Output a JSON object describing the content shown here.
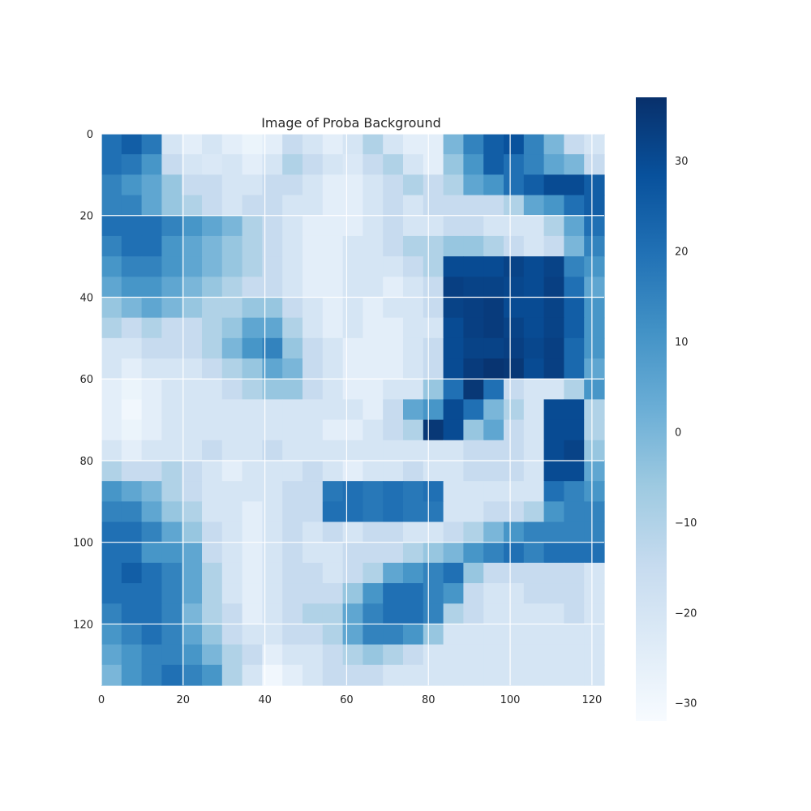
{
  "chart_data": {
    "type": "heatmap",
    "title": "Image of Proba Background",
    "xlabel": "",
    "ylabel": "",
    "grid": true,
    "colormap": "Blues",
    "x_range": [
      0,
      123
    ],
    "y_range": [
      0,
      135
    ],
    "x_ticks": [
      0,
      20,
      40,
      60,
      80,
      100,
      120
    ],
    "y_ticks": [
      0,
      20,
      40,
      60,
      80,
      100,
      120
    ],
    "value_range": [
      -32,
      37
    ],
    "colorbar_ticks": [
      30,
      20,
      10,
      0,
      -10,
      -20,
      -30
    ],
    "colorbar_tick_labels": [
      "30",
      "20",
      "10",
      "0",
      "−10",
      "−20",
      "−30"
    ],
    "grid_shape": {
      "rows": 27,
      "cols": 25,
      "cell_size": 5
    },
    "values": [
      [
        20,
        25,
        18,
        -20,
        -25,
        -20,
        -25,
        -28,
        -25,
        -15,
        -20,
        -25,
        -20,
        -10,
        -20,
        -25,
        -25,
        0,
        15,
        25,
        28,
        15,
        0,
        -15,
        -20
      ],
      [
        20,
        18,
        10,
        -15,
        -20,
        -22,
        -20,
        -25,
        -20,
        -10,
        -15,
        -20,
        -22,
        -15,
        -10,
        -20,
        -25,
        -5,
        10,
        25,
        20,
        15,
        5,
        0,
        -15
      ],
      [
        15,
        10,
        5,
        -5,
        -15,
        -15,
        -20,
        -20,
        -15,
        -15,
        -20,
        -25,
        -25,
        -20,
        -15,
        -10,
        -15,
        -10,
        5,
        10,
        20,
        25,
        30,
        30,
        25
      ],
      [
        15,
        15,
        5,
        -5,
        -10,
        -15,
        -20,
        -15,
        -15,
        -20,
        -20,
        -25,
        -25,
        -20,
        -15,
        -20,
        -15,
        -15,
        -15,
        -15,
        -10,
        5,
        10,
        20,
        25
      ],
      [
        20,
        20,
        20,
        15,
        10,
        5,
        0,
        -10,
        -15,
        -20,
        -25,
        -25,
        -25,
        -20,
        -15,
        -20,
        -20,
        -15,
        -15,
        -20,
        -20,
        -20,
        -10,
        5,
        20
      ],
      [
        15,
        20,
        20,
        10,
        5,
        0,
        -5,
        -10,
        -15,
        -20,
        -25,
        -25,
        -20,
        -20,
        -15,
        -10,
        -10,
        -5,
        -5,
        -10,
        -15,
        -20,
        -15,
        0,
        15
      ],
      [
        10,
        15,
        15,
        10,
        5,
        0,
        -5,
        -10,
        -15,
        -20,
        -25,
        -25,
        -20,
        -20,
        -20,
        -15,
        -10,
        30,
        30,
        30,
        32,
        30,
        32,
        15,
        10
      ],
      [
        5,
        10,
        10,
        5,
        0,
        -5,
        -10,
        -15,
        -15,
        -20,
        -25,
        -25,
        -20,
        -20,
        -25,
        -20,
        -15,
        33,
        32,
        32,
        31,
        30,
        33,
        20,
        5
      ],
      [
        -5,
        0,
        5,
        0,
        -5,
        -10,
        -10,
        -5,
        -5,
        -15,
        -20,
        -25,
        -20,
        -25,
        -20,
        -20,
        -15,
        32,
        33,
        34,
        30,
        30,
        32,
        25,
        10
      ],
      [
        -10,
        -15,
        -10,
        -15,
        -15,
        -10,
        -5,
        5,
        5,
        -10,
        -20,
        -25,
        -20,
        -25,
        -25,
        -20,
        -20,
        30,
        33,
        34,
        32,
        30,
        32,
        25,
        10
      ],
      [
        -20,
        -20,
        -15,
        -15,
        -15,
        -10,
        0,
        10,
        15,
        -5,
        -15,
        -20,
        -25,
        -25,
        -25,
        -20,
        -15,
        30,
        32,
        32,
        33,
        31,
        33,
        22,
        10
      ],
      [
        -20,
        -25,
        -20,
        -20,
        -20,
        -15,
        -10,
        -5,
        5,
        0,
        -15,
        -20,
        -25,
        -25,
        -25,
        -20,
        -15,
        30,
        34,
        36,
        35,
        30,
        33,
        22,
        5
      ],
      [
        -25,
        -28,
        -25,
        -20,
        -20,
        -20,
        -15,
        -10,
        -5,
        -5,
        -15,
        -20,
        -25,
        -25,
        -20,
        -20,
        -5,
        20,
        35,
        20,
        -15,
        -20,
        -20,
        -10,
        10
      ],
      [
        -25,
        -30,
        -25,
        -20,
        -20,
        -20,
        -20,
        -20,
        -20,
        -20,
        -20,
        -20,
        -20,
        -25,
        -15,
        5,
        10,
        30,
        20,
        0,
        -10,
        -20,
        30,
        30,
        -10
      ],
      [
        -25,
        -28,
        -25,
        -20,
        -20,
        -20,
        -20,
        -20,
        -20,
        -20,
        -20,
        -25,
        -25,
        -20,
        -15,
        -10,
        35,
        30,
        -5,
        5,
        -15,
        -20,
        30,
        30,
        -10
      ],
      [
        -20,
        -25,
        -20,
        -20,
        -20,
        -15,
        -20,
        -20,
        -15,
        -20,
        -20,
        -20,
        -20,
        -20,
        -20,
        -20,
        -20,
        -20,
        -15,
        -15,
        -15,
        -20,
        30,
        32,
        -5
      ],
      [
        -10,
        -15,
        -15,
        -10,
        -15,
        -20,
        -25,
        -20,
        -20,
        -20,
        -15,
        -20,
        -25,
        -20,
        -20,
        -15,
        -20,
        -20,
        -15,
        -15,
        -15,
        -20,
        30,
        30,
        5
      ],
      [
        10,
        5,
        0,
        -10,
        -15,
        -20,
        -20,
        -20,
        -20,
        -15,
        -15,
        18,
        20,
        18,
        20,
        18,
        20,
        -20,
        -20,
        -20,
        -20,
        -20,
        20,
        15,
        10
      ],
      [
        15,
        15,
        5,
        -5,
        -10,
        -20,
        -20,
        -25,
        -20,
        -15,
        -15,
        20,
        20,
        18,
        20,
        18,
        18,
        -20,
        -20,
        -15,
        -15,
        -10,
        10,
        15,
        15
      ],
      [
        20,
        20,
        15,
        5,
        -5,
        -15,
        -20,
        -25,
        -20,
        -15,
        -20,
        -15,
        -20,
        -15,
        -15,
        -20,
        -20,
        -15,
        -10,
        0,
        10,
        15,
        15,
        15,
        15
      ],
      [
        20,
        20,
        10,
        10,
        5,
        -15,
        -20,
        -25,
        -20,
        -15,
        -20,
        -20,
        -15,
        -15,
        -15,
        -10,
        -5,
        0,
        10,
        15,
        20,
        15,
        20,
        20,
        20
      ],
      [
        20,
        25,
        20,
        15,
        5,
        -10,
        -20,
        -25,
        -20,
        -15,
        -15,
        -20,
        -15,
        -10,
        5,
        10,
        15,
        20,
        -5,
        -15,
        -15,
        -15,
        -15,
        -15,
        -20
      ],
      [
        20,
        20,
        20,
        15,
        5,
        -10,
        -20,
        -25,
        -20,
        -15,
        -15,
        -15,
        -5,
        10,
        20,
        20,
        15,
        10,
        -15,
        -20,
        -20,
        -15,
        -15,
        -15,
        -20
      ],
      [
        15,
        20,
        20,
        15,
        0,
        -10,
        -15,
        -25,
        -20,
        -15,
        -10,
        -10,
        5,
        15,
        20,
        20,
        15,
        -10,
        -15,
        -20,
        -20,
        -20,
        -20,
        -15,
        -20
      ],
      [
        10,
        15,
        20,
        15,
        5,
        -5,
        -15,
        -20,
        -20,
        -15,
        -15,
        -10,
        5,
        15,
        15,
        10,
        -5,
        -20,
        -20,
        -20,
        -20,
        -20,
        -20,
        -20,
        -20
      ],
      [
        5,
        10,
        15,
        15,
        10,
        0,
        -10,
        -15,
        -25,
        -20,
        -20,
        -15,
        -10,
        -5,
        -10,
        -15,
        -20,
        -20,
        -20,
        -20,
        -20,
        -20,
        -20,
        -20,
        -20
      ],
      [
        0,
        10,
        15,
        20,
        15,
        10,
        -10,
        -20,
        -30,
        -25,
        -20,
        -15,
        -15,
        -15,
        -20,
        -20,
        -20,
        -20,
        -20,
        -20,
        -20,
        -20,
        -20,
        -20,
        -20
      ]
    ],
    "colorscale": [
      [
        0.0,
        "#f7fbff"
      ],
      [
        0.125,
        "#deebf7"
      ],
      [
        0.25,
        "#c6dbef"
      ],
      [
        0.375,
        "#9ecae1"
      ],
      [
        0.5,
        "#6baed6"
      ],
      [
        0.625,
        "#4292c6"
      ],
      [
        0.75,
        "#2171b5"
      ],
      [
        0.875,
        "#08519c"
      ],
      [
        1.0,
        "#08306b"
      ]
    ],
    "grid_color": "#ffffff"
  }
}
